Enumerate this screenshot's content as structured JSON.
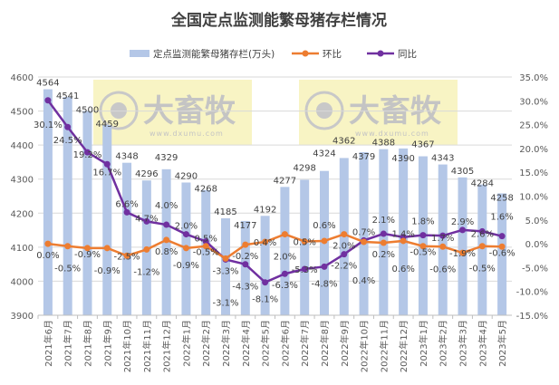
{
  "chart_data": {
    "type": "bar+line",
    "title": "全国定点监测能繁母猪存栏情况",
    "categories": [
      "2021年6月",
      "2021年7月",
      "2021年8月",
      "2021年9月",
      "2021年10月",
      "2021年11月",
      "2021年12月",
      "2022年1月",
      "2022年2月",
      "2022年3月",
      "2022年4月",
      "2022年5月",
      "2022年6月",
      "2022年7月",
      "2022年8月",
      "2022年9月",
      "2022年10月",
      "2022年11月",
      "2022年12月",
      "2023年1月",
      "2023年2月",
      "2023年3月",
      "2023年4月",
      "2023年5月"
    ],
    "series": [
      {
        "name": "定点监测能繁母猪存栏(万头)",
        "type": "bar",
        "axis": "left",
        "color": "#b4c7e7",
        "values": [
          4564,
          4541,
          4500,
          4459,
          4348,
          4296,
          4329,
          4290,
          4268,
          4185,
          4177,
          4192,
          4277,
          4298,
          4324,
          4362,
          4379,
          4388,
          4390,
          4367,
          4343,
          4305,
          4284,
          4258
        ]
      },
      {
        "name": "环比",
        "type": "line",
        "axis": "right",
        "color": "#ed7d31",
        "values": [
          0.0,
          -0.5,
          -0.9,
          -0.9,
          -2.5,
          -1.2,
          0.8,
          -0.9,
          -0.5,
          -3.1,
          -0.2,
          0.4,
          2.0,
          0.5,
          0.6,
          2.0,
          0.4,
          0.2,
          0.6,
          -0.5,
          -0.6,
          -1.9,
          -0.5,
          -0.6
        ]
      },
      {
        "name": "同比",
        "type": "line",
        "axis": "right",
        "color": "#7030a0",
        "values": [
          30.1,
          24.5,
          19.2,
          16.7,
          6.6,
          4.7,
          4.0,
          2.0,
          0.5,
          -3.3,
          -4.3,
          -8.1,
          -6.3,
          -5.3,
          -4.8,
          -2.2,
          0.7,
          2.1,
          1.4,
          1.8,
          1.7,
          2.9,
          2.6,
          1.6
        ]
      }
    ],
    "ylim_left": [
      3900,
      4600
    ],
    "yticks_left": [
      3900,
      4000,
      4100,
      4200,
      4300,
      4400,
      4500,
      4600
    ],
    "ylim_right": [
      -15,
      35
    ],
    "yticks_right": [
      "-15.0%",
      "-10.0%",
      "-5.0%",
      "0.0%",
      "5.0%",
      "10.0%",
      "15.0%",
      "20.0%",
      "25.0%",
      "30.0%",
      "35.0%"
    ],
    "legend_position": "top",
    "grid": true
  },
  "watermark": {
    "brand": "大畜牧",
    "url": "www.dxumu.com"
  }
}
